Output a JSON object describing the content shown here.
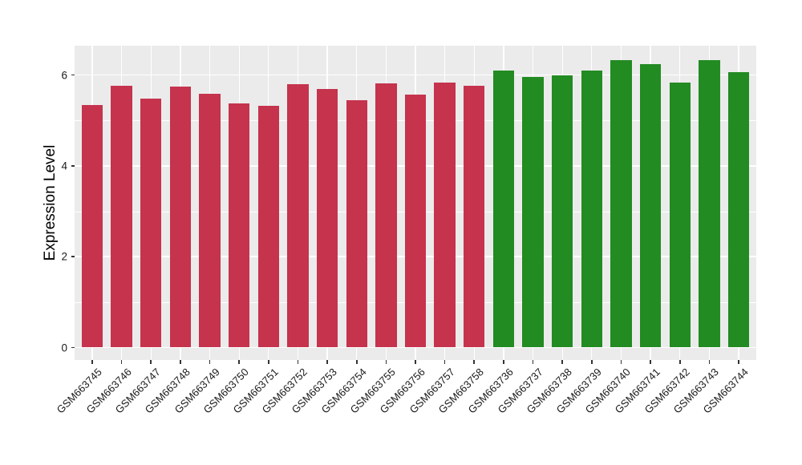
{
  "figure": {
    "background": "#FFFFFF",
    "panel_bg": "#EBEBEB",
    "grid_color": "#FFFFFF",
    "tick_color": "#333333",
    "axis_text_color": "#1A1A1A",
    "axis_title_color": "#000000"
  },
  "chart_data": {
    "type": "bar",
    "title": "",
    "xlabel": "",
    "ylabel": "Expression Level",
    "ylim": [
      -0.27,
      6.64
    ],
    "yticks": [
      0,
      2,
      4,
      6
    ],
    "yticks_minor": [
      1,
      3,
      5
    ],
    "grid": true,
    "legend_position": "none",
    "group_colors": {
      "red_group": "#C5334D",
      "green_group": "#228B22"
    },
    "bars": [
      {
        "label": "GSM663745",
        "value": 5.34,
        "color": "#C5334D",
        "group": "red_group"
      },
      {
        "label": "GSM663746",
        "value": 5.76,
        "color": "#C5334D",
        "group": "red_group"
      },
      {
        "label": "GSM663747",
        "value": 5.48,
        "color": "#C5334D",
        "group": "red_group"
      },
      {
        "label": "GSM663748",
        "value": 5.75,
        "color": "#C5334D",
        "group": "red_group"
      },
      {
        "label": "GSM663749",
        "value": 5.58,
        "color": "#C5334D",
        "group": "red_group"
      },
      {
        "label": "GSM663750",
        "value": 5.37,
        "color": "#C5334D",
        "group": "red_group"
      },
      {
        "label": "GSM663751",
        "value": 5.32,
        "color": "#C5334D",
        "group": "red_group"
      },
      {
        "label": "GSM663752",
        "value": 5.8,
        "color": "#C5334D",
        "group": "red_group"
      },
      {
        "label": "GSM663753",
        "value": 5.7,
        "color": "#C5334D",
        "group": "red_group"
      },
      {
        "label": "GSM663754",
        "value": 5.44,
        "color": "#C5334D",
        "group": "red_group"
      },
      {
        "label": "GSM663755",
        "value": 5.81,
        "color": "#C5334D",
        "group": "red_group"
      },
      {
        "label": "GSM663756",
        "value": 5.56,
        "color": "#C5334D",
        "group": "red_group"
      },
      {
        "label": "GSM663757",
        "value": 5.83,
        "color": "#C5334D",
        "group": "red_group"
      },
      {
        "label": "GSM663758",
        "value": 5.76,
        "color": "#C5334D",
        "group": "red_group"
      },
      {
        "label": "GSM663736",
        "value": 6.09,
        "color": "#228B22",
        "group": "green_group"
      },
      {
        "label": "GSM663737",
        "value": 5.95,
        "color": "#228B22",
        "group": "green_group"
      },
      {
        "label": "GSM663738",
        "value": 6.0,
        "color": "#228B22",
        "group": "green_group"
      },
      {
        "label": "GSM663739",
        "value": 6.1,
        "color": "#228B22",
        "group": "green_group"
      },
      {
        "label": "GSM663740",
        "value": 6.33,
        "color": "#228B22",
        "group": "green_group"
      },
      {
        "label": "GSM663741",
        "value": 6.24,
        "color": "#228B22",
        "group": "green_group"
      },
      {
        "label": "GSM663742",
        "value": 5.84,
        "color": "#228B22",
        "group": "green_group"
      },
      {
        "label": "GSM663743",
        "value": 6.33,
        "color": "#228B22",
        "group": "green_group"
      },
      {
        "label": "GSM663744",
        "value": 6.06,
        "color": "#228B22",
        "group": "green_group"
      }
    ]
  }
}
